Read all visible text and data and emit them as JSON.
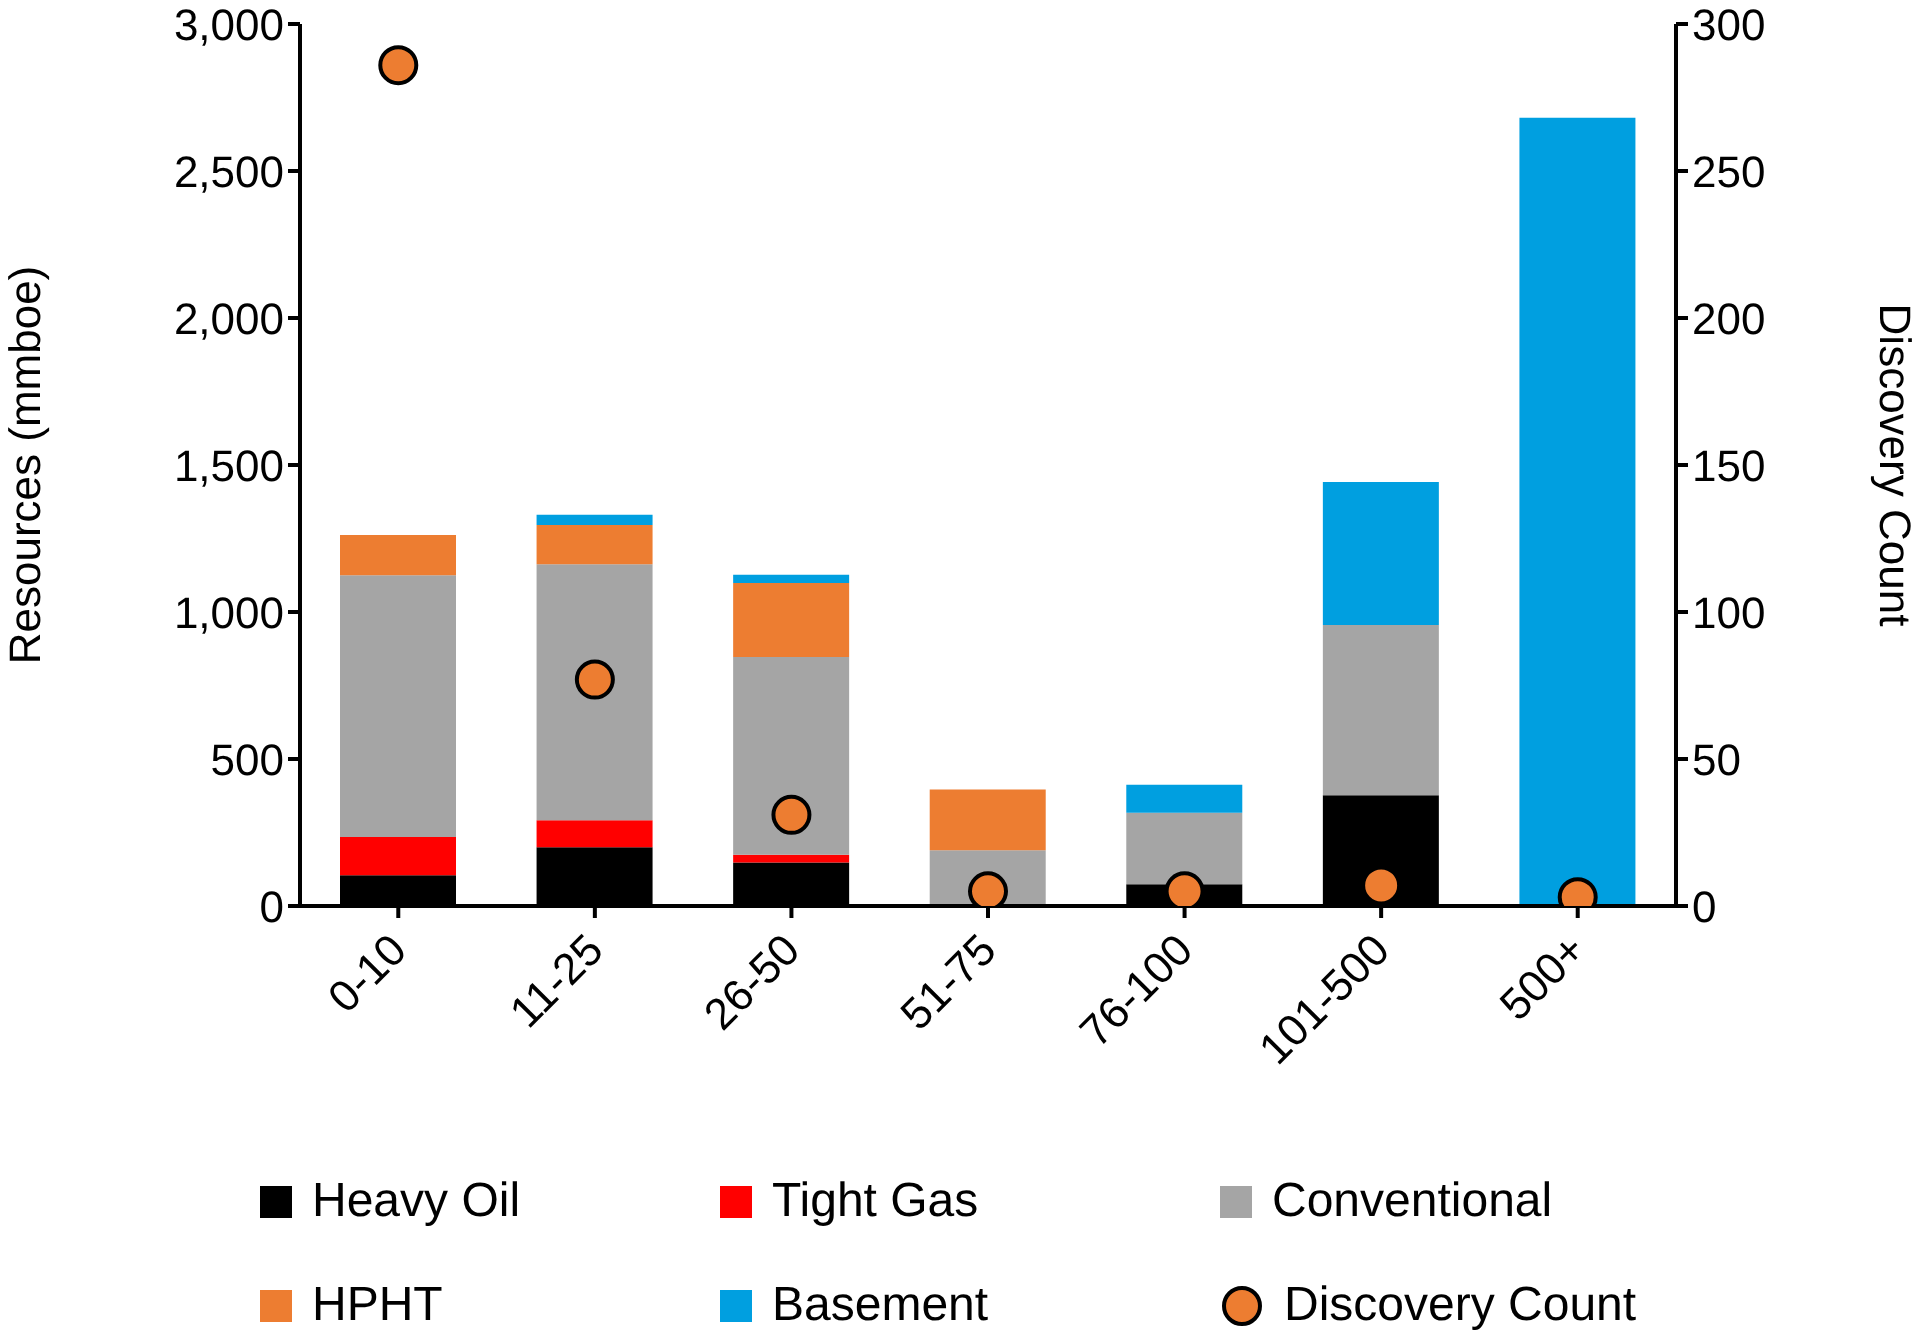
{
  "chart_data": {
    "type": "bar",
    "stacked": true,
    "categories": [
      "0-10",
      "11-25",
      "26-50",
      "51-75",
      "76-100",
      "101-500",
      "500+"
    ],
    "ylabel": "Resources (mmboe)",
    "y2label": "Discovery Count",
    "ylim": [
      0,
      3000
    ],
    "yticks": [
      0,
      500,
      {
        "value": 1000,
        "label": "1,000"
      },
      {
        "value": 1500,
        "label": "1,500"
      },
      {
        "value": 2000,
        "label": "2,000"
      },
      {
        "value": 2500,
        "label": "2,500"
      },
      {
        "value": 3000,
        "label": "3,000"
      }
    ],
    "y2lim": [
      0,
      300
    ],
    "y2ticks": [
      0,
      50,
      100,
      150,
      200,
      250,
      300
    ],
    "grid": false,
    "legend": "bottom",
    "series": [
      {
        "name": "Heavy Oil",
        "color": "#000000",
        "values": [
          105,
          200,
          148,
          null,
          74,
          377,
          null
        ]
      },
      {
        "name": "Tight Gas",
        "color": "#ff0000",
        "values": [
          130,
          92,
          26,
          null,
          null,
          null,
          null
        ]
      },
      {
        "name": "Conventional",
        "color": "#a5a5a5",
        "values": [
          890,
          870,
          673,
          190,
          243,
          579,
          null
        ]
      },
      {
        "name": "HPHT",
        "color": "#ed7d31",
        "values": [
          137,
          134,
          252,
          206,
          null,
          null,
          null
        ]
      },
      {
        "name": "Basement",
        "color": "#009fe0",
        "values": [
          null,
          35,
          28,
          null,
          95,
          486,
          2681
        ]
      },
      {
        "name": "Discovery Count",
        "type": "scatter",
        "axis": "y2",
        "marker": "circle",
        "color": "#ed7d31",
        "values": [
          286,
          77,
          31,
          5,
          5,
          7,
          3
        ]
      }
    ]
  }
}
